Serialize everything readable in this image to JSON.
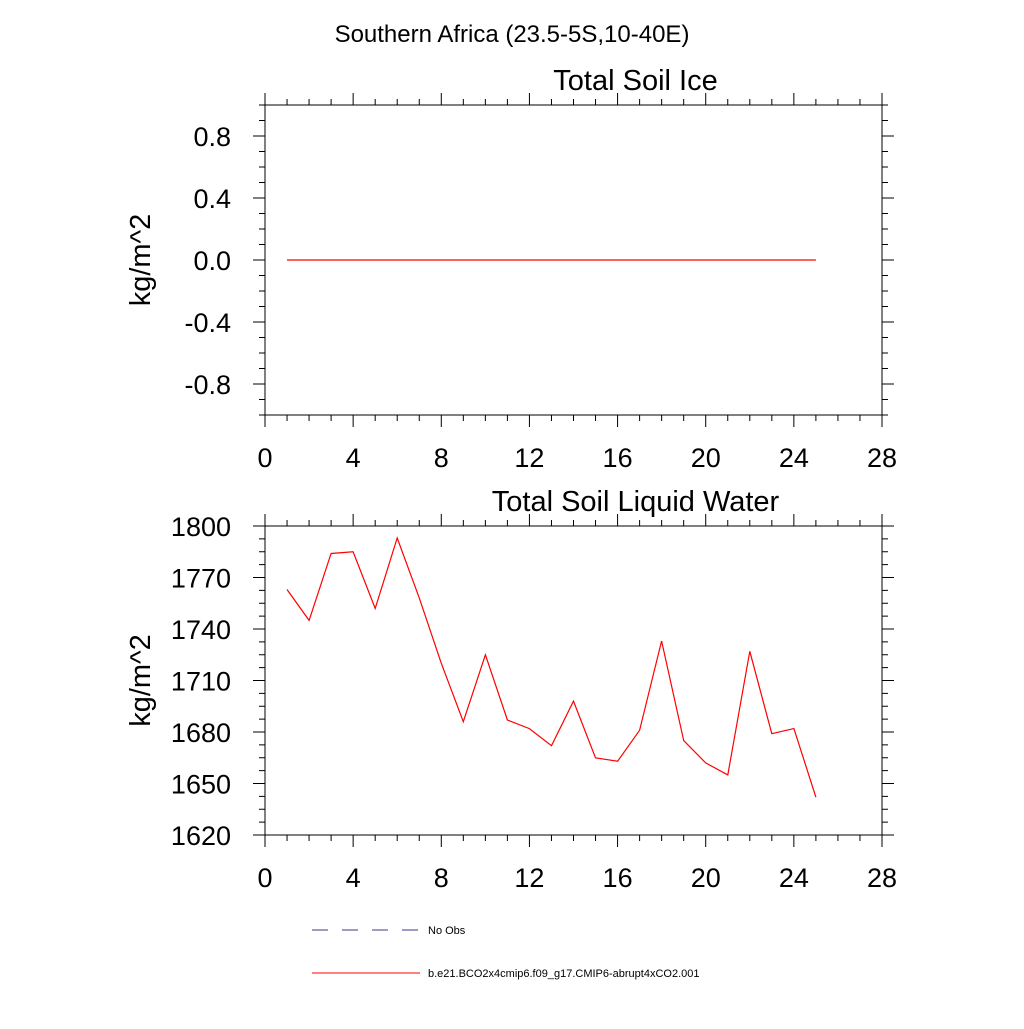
{
  "page_title": "Southern Africa (23.5-5S,10-40E)",
  "colors": {
    "model": "#ff0000",
    "obs": "#3a3a8a",
    "axis": "#000000"
  },
  "legend": {
    "obs_label": "No Obs",
    "model_label": "b.e21.BCO2x4cmip6.f09_g17.CMIP6-abrupt4xCO2.001"
  },
  "chart_data": [
    {
      "type": "line",
      "title": "Total Soil Ice",
      "xlabel": "",
      "ylabel": "kg/m^2",
      "xlim": [
        0,
        28
      ],
      "ylim": [
        -1,
        1
      ],
      "xticks": [
        0,
        4,
        8,
        12,
        16,
        20,
        24,
        28
      ],
      "yticks": [
        -0.8,
        -0.4,
        0.0,
        0.4,
        0.8
      ],
      "ytick_labels": [
        "-0.8",
        "-0.4",
        "0.0",
        "0.4",
        "0.8"
      ],
      "series": [
        {
          "x": [
            1,
            2,
            3,
            4,
            5,
            6,
            7,
            8,
            9,
            10,
            11,
            12,
            13,
            14,
            15,
            16,
            17,
            18,
            19,
            20,
            21,
            22,
            23,
            24,
            25
          ],
          "values": [
            0,
            0,
            0,
            0,
            0,
            0,
            0,
            0,
            0,
            0,
            0,
            0,
            0,
            0,
            0,
            0,
            0,
            0,
            0,
            0,
            0,
            0,
            0,
            0,
            0
          ]
        }
      ]
    },
    {
      "type": "line",
      "title": "Total Soil Liquid Water",
      "xlabel": "",
      "ylabel": "kg/m^2",
      "xlim": [
        0,
        28
      ],
      "ylim": [
        1620,
        1800
      ],
      "xticks": [
        0,
        4,
        8,
        12,
        16,
        20,
        24,
        28
      ],
      "yticks": [
        1620,
        1650,
        1680,
        1710,
        1740,
        1770,
        1800
      ],
      "ytick_labels": [
        "1620",
        "1650",
        "1680",
        "1710",
        "1740",
        "1770",
        "1800"
      ],
      "series": [
        {
          "x": [
            1,
            2,
            3,
            4,
            5,
            6,
            7,
            8,
            9,
            10,
            11,
            12,
            13,
            14,
            15,
            16,
            17,
            18,
            19,
            20,
            21,
            22,
            23,
            24,
            25
          ],
          "values": [
            1763,
            1745,
            1784,
            1785,
            1752,
            1793,
            1758,
            1720,
            1686,
            1725,
            1687,
            1682,
            1672,
            1698,
            1665,
            1663,
            1681,
            1733,
            1675,
            1662,
            1655,
            1727,
            1679,
            1682,
            1642
          ]
        }
      ]
    }
  ]
}
